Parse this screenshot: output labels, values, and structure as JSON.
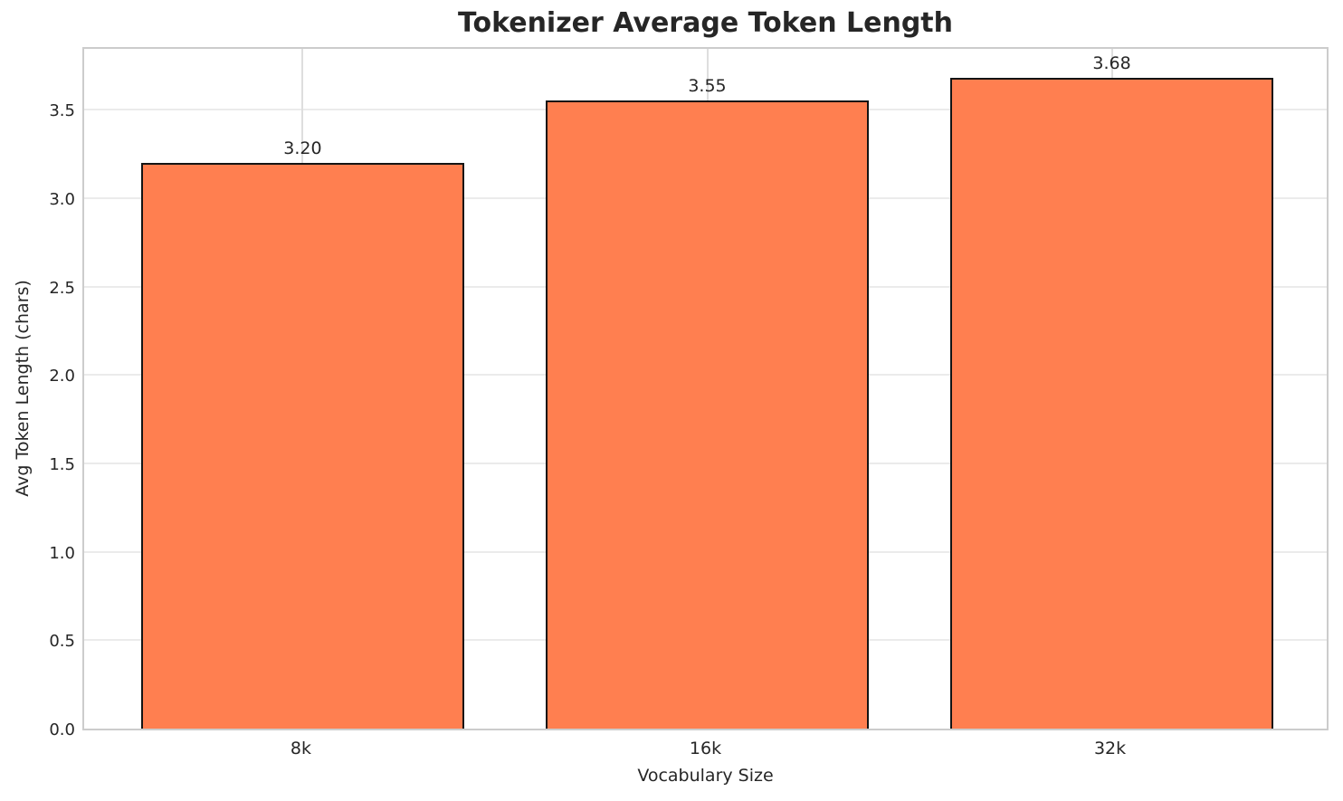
{
  "chart_data": {
    "type": "bar",
    "title": "Tokenizer Average Token Length",
    "xlabel": "Vocabulary Size",
    "ylabel": "Avg Token Length (chars)",
    "categories": [
      "8k",
      "16k",
      "32k"
    ],
    "values": [
      3.2,
      3.55,
      3.68
    ],
    "value_labels": [
      "3.20",
      "3.55",
      "3.68"
    ],
    "ytick_labels": [
      "0.0",
      "0.5",
      "1.0",
      "1.5",
      "2.0",
      "2.5",
      "3.0",
      "3.5"
    ],
    "yticks": [
      0.0,
      0.5,
      1.0,
      1.5,
      2.0,
      2.5,
      3.0,
      3.5
    ],
    "ylim": [
      0,
      3.864
    ],
    "grid": true,
    "legend": false,
    "colors": {
      "bar_fill": "#ff7f50",
      "bar_edge": "#141414",
      "grid_horizontal": "#ebebeb",
      "grid_vertical": "#dedede",
      "spine": "#cccccc",
      "text": "#262626",
      "background": "#ffffff"
    }
  }
}
